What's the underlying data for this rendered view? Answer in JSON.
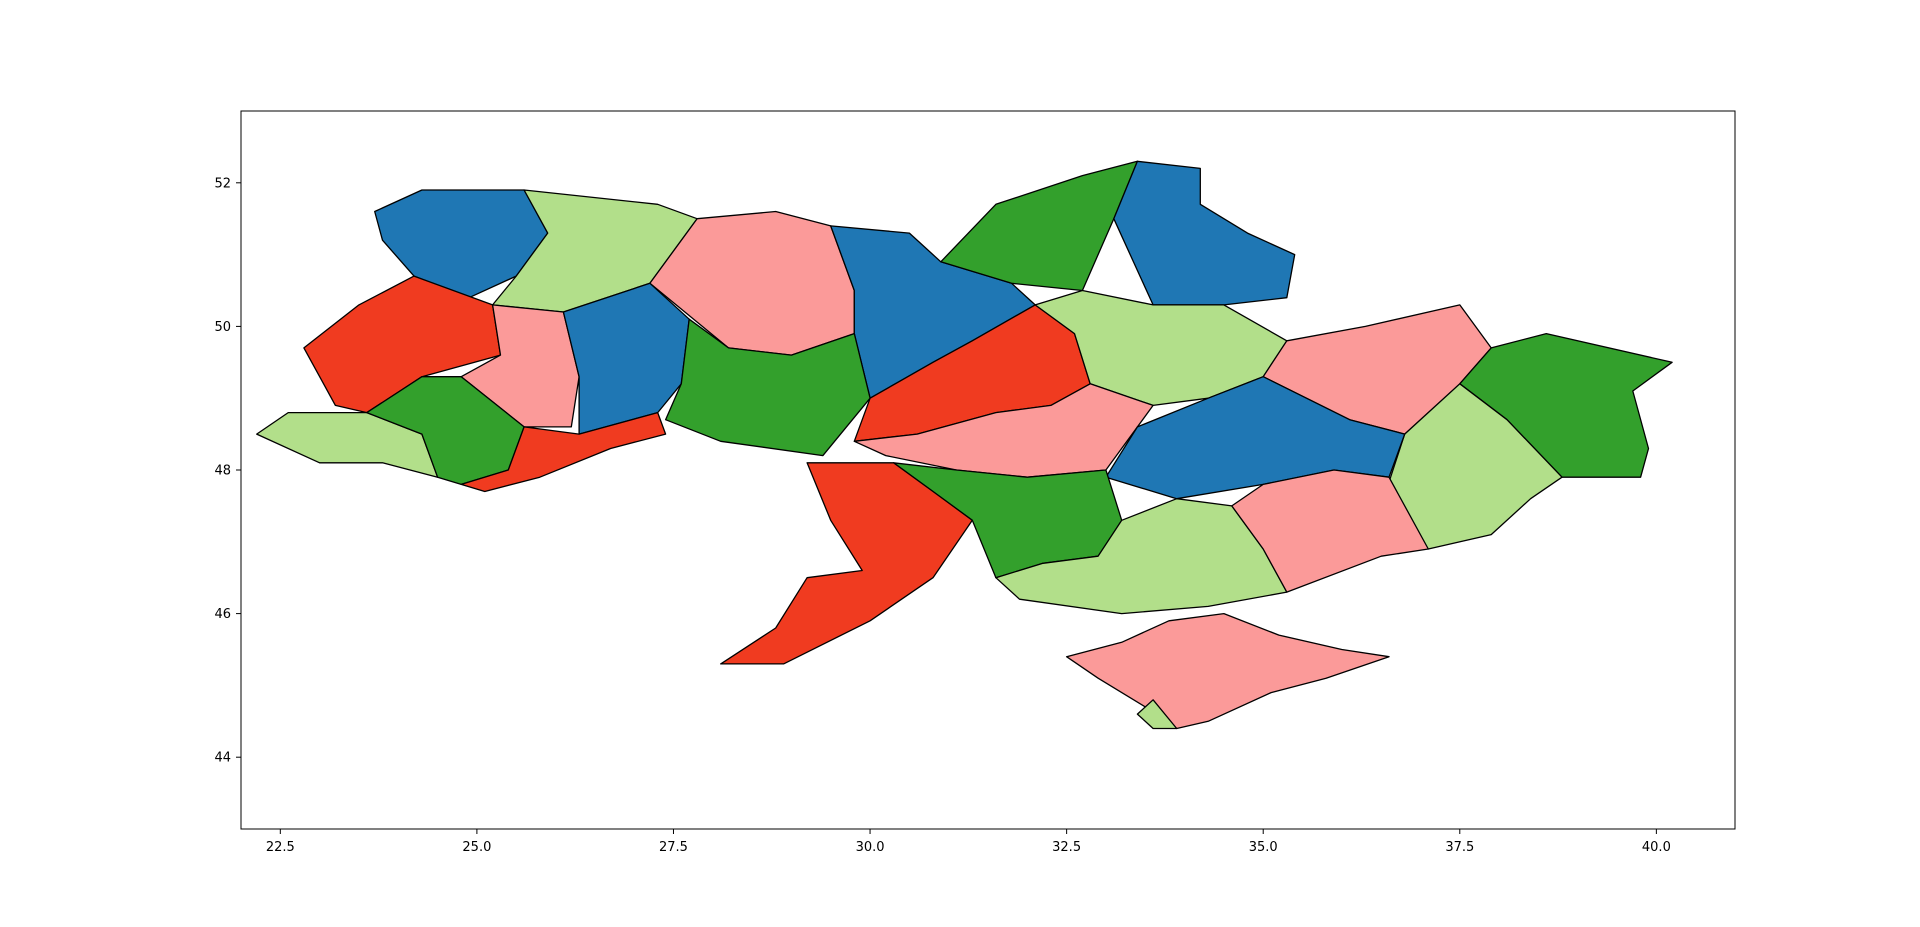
{
  "chart_data": {
    "type": "map",
    "title": "",
    "xlabel": "",
    "ylabel": "",
    "xlim": [
      22.0,
      41.0
    ],
    "ylim": [
      43.0,
      53.0
    ],
    "x_ticks": [
      "22.5",
      "25.0",
      "27.5",
      "30.0",
      "32.5",
      "35.0",
      "37.5",
      "40.0"
    ],
    "y_ticks": [
      "44",
      "46",
      "48",
      "50",
      "52"
    ],
    "grid": false,
    "legend": "none",
    "palette": {
      "blue": "#1f77b4",
      "light-green": "#b2df8a",
      "dark-green": "#33a02c",
      "pink": "#fb9a99",
      "red": "#f03b20"
    },
    "regions": [
      {
        "color": "blue",
        "points": [
          [
            23.7,
            51.6
          ],
          [
            24.3,
            51.9
          ],
          [
            25.6,
            51.9
          ],
          [
            25.9,
            51.3
          ],
          [
            25.5,
            50.7
          ],
          [
            24.9,
            50.4
          ],
          [
            24.2,
            50.7
          ],
          [
            23.8,
            51.2
          ]
        ]
      },
      {
        "color": "light-green",
        "points": [
          [
            25.6,
            51.9
          ],
          [
            27.3,
            51.7
          ],
          [
            27.8,
            51.5
          ],
          [
            27.2,
            50.6
          ],
          [
            26.1,
            50.2
          ],
          [
            25.2,
            50.3
          ],
          [
            25.5,
            50.7
          ],
          [
            25.9,
            51.3
          ]
        ]
      },
      {
        "color": "pink",
        "points": [
          [
            27.8,
            51.5
          ],
          [
            28.8,
            51.6
          ],
          [
            29.5,
            51.4
          ],
          [
            29.8,
            50.5
          ],
          [
            29.8,
            49.9
          ],
          [
            29.0,
            49.6
          ],
          [
            28.2,
            49.7
          ],
          [
            27.2,
            50.6
          ]
        ]
      },
      {
        "color": "blue",
        "points": [
          [
            29.5,
            51.4
          ],
          [
            30.5,
            51.3
          ],
          [
            30.9,
            50.9
          ],
          [
            31.8,
            50.6
          ],
          [
            32.1,
            50.3
          ],
          [
            31.3,
            49.8
          ],
          [
            30.8,
            49.5
          ],
          [
            30.0,
            49.0
          ],
          [
            29.8,
            49.9
          ],
          [
            29.8,
            50.5
          ]
        ]
      },
      {
        "color": "dark-green",
        "points": [
          [
            30.9,
            50.9
          ],
          [
            31.6,
            51.7
          ],
          [
            32.7,
            52.1
          ],
          [
            33.4,
            52.3
          ],
          [
            33.1,
            51.5
          ],
          [
            32.7,
            50.5
          ],
          [
            31.8,
            50.6
          ]
        ]
      },
      {
        "color": "blue",
        "points": [
          [
            33.4,
            52.3
          ],
          [
            34.2,
            52.2
          ],
          [
            34.2,
            51.7
          ],
          [
            34.8,
            51.3
          ],
          [
            35.4,
            51.0
          ],
          [
            35.3,
            50.4
          ],
          [
            34.5,
            50.3
          ],
          [
            33.6,
            50.3
          ],
          [
            33.1,
            51.5
          ]
        ]
      },
      {
        "color": "red",
        "points": [
          [
            24.2,
            50.7
          ],
          [
            25.2,
            50.3
          ],
          [
            25.3,
            49.6
          ],
          [
            24.3,
            49.3
          ],
          [
            23.6,
            48.8
          ],
          [
            23.2,
            48.9
          ],
          [
            22.8,
            49.7
          ],
          [
            23.5,
            50.3
          ]
        ]
      },
      {
        "color": "pink",
        "points": [
          [
            25.2,
            50.3
          ],
          [
            26.1,
            50.2
          ],
          [
            26.3,
            49.3
          ],
          [
            26.2,
            48.6
          ],
          [
            25.6,
            48.6
          ],
          [
            24.8,
            49.3
          ],
          [
            25.3,
            49.6
          ]
        ]
      },
      {
        "color": "blue",
        "points": [
          [
            26.1,
            50.2
          ],
          [
            27.2,
            50.6
          ],
          [
            27.7,
            50.1
          ],
          [
            27.6,
            49.2
          ],
          [
            27.3,
            48.8
          ],
          [
            26.3,
            48.5
          ],
          [
            26.3,
            49.3
          ]
        ]
      },
      {
        "color": "dark-green",
        "points": [
          [
            27.6,
            49.2
          ],
          [
            27.7,
            50.1
          ],
          [
            28.2,
            49.7
          ],
          [
            29.0,
            49.6
          ],
          [
            29.8,
            49.9
          ],
          [
            30.0,
            49.0
          ],
          [
            29.4,
            48.2
          ],
          [
            28.1,
            48.4
          ],
          [
            27.4,
            48.7
          ]
        ]
      },
      {
        "color": "light-green",
        "points": [
          [
            22.2,
            48.5
          ],
          [
            22.6,
            48.8
          ],
          [
            23.6,
            48.8
          ],
          [
            24.3,
            48.5
          ],
          [
            24.5,
            47.9
          ],
          [
            23.8,
            48.1
          ],
          [
            23.0,
            48.1
          ]
        ]
      },
      {
        "color": "dark-green",
        "points": [
          [
            23.6,
            48.8
          ],
          [
            24.3,
            49.3
          ],
          [
            24.8,
            49.3
          ],
          [
            25.6,
            48.6
          ],
          [
            25.4,
            48.0
          ],
          [
            24.8,
            47.8
          ],
          [
            24.5,
            47.9
          ],
          [
            24.3,
            48.5
          ]
        ]
      },
      {
        "color": "red",
        "points": [
          [
            24.8,
            47.8
          ],
          [
            25.4,
            48.0
          ],
          [
            25.6,
            48.6
          ],
          [
            26.3,
            48.5
          ],
          [
            27.3,
            48.8
          ],
          [
            27.4,
            48.5
          ],
          [
            26.7,
            48.3
          ],
          [
            25.8,
            47.9
          ],
          [
            25.1,
            47.7
          ]
        ]
      },
      {
        "color": "red",
        "points": [
          [
            30.0,
            49.0
          ],
          [
            30.8,
            49.5
          ],
          [
            31.3,
            49.8
          ],
          [
            32.1,
            50.3
          ],
          [
            32.6,
            49.9
          ],
          [
            32.8,
            49.2
          ],
          [
            32.3,
            48.9
          ],
          [
            31.6,
            48.8
          ],
          [
            30.6,
            48.5
          ],
          [
            29.8,
            48.4
          ]
        ]
      },
      {
        "color": "light-green",
        "points": [
          [
            32.1,
            50.3
          ],
          [
            32.7,
            50.5
          ],
          [
            33.6,
            50.3
          ],
          [
            34.5,
            50.3
          ],
          [
            35.3,
            49.8
          ],
          [
            35.0,
            49.3
          ],
          [
            34.3,
            49.0
          ],
          [
            33.6,
            48.9
          ],
          [
            32.8,
            49.2
          ],
          [
            32.6,
            49.9
          ]
        ]
      },
      {
        "color": "pink",
        "points": [
          [
            35.3,
            49.8
          ],
          [
            36.3,
            50.0
          ],
          [
            37.5,
            50.3
          ],
          [
            37.9,
            49.7
          ],
          [
            37.5,
            49.2
          ],
          [
            36.8,
            48.5
          ],
          [
            36.1,
            48.7
          ],
          [
            35.0,
            49.3
          ]
        ]
      },
      {
        "color": "dark-green",
        "points": [
          [
            37.9,
            49.7
          ],
          [
            38.6,
            49.9
          ],
          [
            40.2,
            49.5
          ],
          [
            39.7,
            49.1
          ],
          [
            39.9,
            48.3
          ],
          [
            39.8,
            47.9
          ],
          [
            38.8,
            47.9
          ],
          [
            38.1,
            48.7
          ],
          [
            37.5,
            49.2
          ]
        ]
      },
      {
        "color": "light-green",
        "points": [
          [
            37.5,
            49.2
          ],
          [
            38.1,
            48.7
          ],
          [
            38.8,
            47.9
          ],
          [
            38.4,
            47.6
          ],
          [
            37.9,
            47.1
          ],
          [
            37.1,
            46.9
          ],
          [
            36.5,
            47.5
          ],
          [
            36.8,
            48.5
          ]
        ]
      },
      {
        "color": "pink",
        "points": [
          [
            29.8,
            48.4
          ],
          [
            30.6,
            48.5
          ],
          [
            31.6,
            48.8
          ],
          [
            32.3,
            48.9
          ],
          [
            32.8,
            49.2
          ],
          [
            33.6,
            48.9
          ],
          [
            33.4,
            48.6
          ],
          [
            33.0,
            48.0
          ],
          [
            32.0,
            47.9
          ],
          [
            31.1,
            48.0
          ],
          [
            30.2,
            48.2
          ]
        ]
      },
      {
        "color": "blue",
        "points": [
          [
            33.4,
            48.6
          ],
          [
            34.3,
            49.0
          ],
          [
            35.0,
            49.3
          ],
          [
            36.1,
            48.7
          ],
          [
            36.8,
            48.5
          ],
          [
            36.6,
            47.9
          ],
          [
            35.9,
            48.0
          ],
          [
            35.0,
            47.8
          ],
          [
            33.9,
            47.6
          ],
          [
            33.0,
            47.9
          ]
        ]
      },
      {
        "color": "dark-green",
        "points": [
          [
            30.3,
            48.1
          ],
          [
            31.1,
            48.0
          ],
          [
            32.0,
            47.9
          ],
          [
            33.0,
            48.0
          ],
          [
            33.2,
            47.3
          ],
          [
            32.9,
            46.8
          ],
          [
            32.2,
            46.7
          ],
          [
            31.6,
            46.5
          ],
          [
            31.3,
            47.3
          ],
          [
            30.8,
            47.7
          ]
        ]
      },
      {
        "color": "red",
        "points": [
          [
            29.2,
            48.1
          ],
          [
            29.5,
            47.3
          ],
          [
            29.9,
            46.6
          ],
          [
            29.2,
            46.5
          ],
          [
            28.8,
            45.8
          ],
          [
            28.1,
            45.3
          ],
          [
            28.9,
            45.3
          ],
          [
            30.0,
            45.9
          ],
          [
            30.8,
            46.5
          ],
          [
            31.3,
            47.3
          ],
          [
            30.8,
            47.7
          ],
          [
            30.3,
            48.1
          ]
        ]
      },
      {
        "color": "light-green",
        "points": [
          [
            31.6,
            46.5
          ],
          [
            32.2,
            46.7
          ],
          [
            32.9,
            46.8
          ],
          [
            33.2,
            47.3
          ],
          [
            33.9,
            47.6
          ],
          [
            34.6,
            47.5
          ],
          [
            35.0,
            46.9
          ],
          [
            35.3,
            46.3
          ],
          [
            34.3,
            46.1
          ],
          [
            33.2,
            46.0
          ],
          [
            31.9,
            46.2
          ]
        ]
      },
      {
        "color": "pink",
        "points": [
          [
            34.6,
            47.5
          ],
          [
            35.0,
            47.8
          ],
          [
            35.9,
            48.0
          ],
          [
            36.6,
            47.9
          ],
          [
            37.1,
            46.9
          ],
          [
            36.5,
            46.8
          ],
          [
            35.3,
            46.3
          ],
          [
            35.0,
            46.9
          ]
        ]
      },
      {
        "color": "pink",
        "points": [
          [
            32.5,
            45.4
          ],
          [
            33.2,
            45.6
          ],
          [
            33.8,
            45.9
          ],
          [
            34.5,
            46.0
          ],
          [
            35.2,
            45.7
          ],
          [
            36.0,
            45.5
          ],
          [
            36.6,
            45.4
          ],
          [
            35.8,
            45.1
          ],
          [
            35.1,
            44.9
          ],
          [
            34.3,
            44.5
          ],
          [
            33.9,
            44.4
          ],
          [
            33.5,
            44.7
          ],
          [
            32.9,
            45.1
          ]
        ]
      },
      {
        "color": "light-green",
        "points": [
          [
            33.4,
            44.6
          ],
          [
            33.6,
            44.8
          ],
          [
            33.9,
            44.4
          ],
          [
            33.6,
            44.4
          ]
        ]
      }
    ]
  }
}
